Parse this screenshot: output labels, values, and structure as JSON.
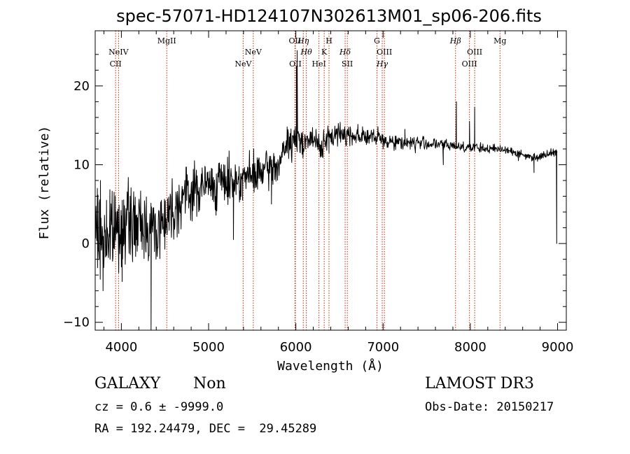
{
  "chart_data": {
    "type": "line",
    "title": "spec-57071-HD124107N302613M01_sp06-206.fits",
    "xlabel": "Wavelength (Å)",
    "ylabel": "Flux (relative)",
    "xlim": [
      3700,
      9100
    ],
    "ylim": [
      -11,
      27
    ],
    "x_ticks": [
      4000,
      5000,
      6000,
      7000,
      8000,
      9000
    ],
    "y_ticks": [
      -10,
      0,
      10,
      20
    ],
    "grid": false,
    "line_color": "#000000",
    "marker_color": "#cc2200",
    "spectrum": {
      "name": "flux",
      "anchors": [
        [
          3700,
          1.0
        ],
        [
          3800,
          0.5
        ],
        [
          3900,
          1.5
        ],
        [
          4000,
          2.0
        ],
        [
          4100,
          2.5
        ],
        [
          4200,
          2.0
        ],
        [
          4300,
          2.5
        ],
        [
          4400,
          1.5
        ],
        [
          4500,
          3.5
        ],
        [
          4600,
          4.5
        ],
        [
          4700,
          6.0
        ],
        [
          4800,
          6.5
        ],
        [
          4900,
          7.0
        ],
        [
          5000,
          7.5
        ],
        [
          5100,
          7.5
        ],
        [
          5200,
          8.0
        ],
        [
          5300,
          8.0
        ],
        [
          5400,
          8.5
        ],
        [
          5500,
          8.5
        ],
        [
          5600,
          9.0
        ],
        [
          5700,
          9.5
        ],
        [
          5800,
          10.0
        ],
        [
          5900,
          12.5
        ],
        [
          6000,
          13.0
        ],
        [
          6100,
          13.2
        ],
        [
          6200,
          13.0
        ],
        [
          6300,
          12.5
        ],
        [
          6400,
          13.5
        ],
        [
          6500,
          14.0
        ],
        [
          6600,
          13.8
        ],
        [
          6700,
          13.8
        ],
        [
          6800,
          13.6
        ],
        [
          6900,
          13.4
        ],
        [
          7000,
          13.2
        ],
        [
          7200,
          12.8
        ],
        [
          7400,
          12.8
        ],
        [
          7600,
          12.6
        ],
        [
          7800,
          12.4
        ],
        [
          8000,
          12.2
        ],
        [
          8200,
          12.0
        ],
        [
          8400,
          12.0
        ],
        [
          8600,
          11.2
        ],
        [
          8700,
          11.0
        ],
        [
          8800,
          11.0
        ],
        [
          8900,
          11.5
        ],
        [
          9000,
          11.8
        ]
      ],
      "features": [
        [
          3725,
          7.0
        ],
        [
          3760,
          8.0
        ],
        [
          3790,
          -6.0
        ],
        [
          3830,
          5.5
        ],
        [
          3870,
          -2.0
        ],
        [
          3930,
          6.0
        ],
        [
          4010,
          5.5
        ],
        [
          4100,
          6.0
        ],
        [
          4200,
          5.0
        ],
        [
          4280,
          -1.0
        ],
        [
          4340,
          -11.0
        ],
        [
          4360,
          4.5
        ],
        [
          5285,
          0.5
        ],
        [
          5390,
          5.5
        ],
        [
          5720,
          5.0
        ],
        [
          5900,
          14.8
        ],
        [
          6007,
          22.5
        ],
        [
          6015,
          24.5
        ],
        [
          6300,
          11.0
        ],
        [
          6380,
          11.5
        ],
        [
          6560,
          14.8
        ],
        [
          6940,
          14.6
        ],
        [
          7000,
          12.0
        ],
        [
          7250,
          14.5
        ],
        [
          7370,
          11.5
        ],
        [
          7690,
          10.0
        ],
        [
          7840,
          18.0
        ],
        [
          7990,
          15.5
        ],
        [
          8050,
          17.3
        ],
        [
          8550,
          10.5
        ],
        [
          8730,
          9.0
        ],
        [
          8950,
          12.0
        ],
        [
          8990,
          0.0
        ]
      ],
      "noise": {
        "seed": 7,
        "blue_end_amplitude": 5.0,
        "red_end_amplitude": 0.5,
        "points": 1200
      }
    },
    "line_markers": [
      {
        "label": "CII",
        "x": 3934,
        "row": 3,
        "italic": false
      },
      {
        "label": "NeIV",
        "x": 3968,
        "row": 2,
        "italic": false
      },
      {
        "label": "MgII",
        "x": 4520,
        "row": 1,
        "italic": false
      },
      {
        "label": "NeV",
        "x": 5396,
        "row": 3,
        "italic": false
      },
      {
        "label": "NeV",
        "x": 5512,
        "row": 2,
        "italic": false
      },
      {
        "label": "OII",
        "x": 5990,
        "row": 1,
        "italic": false
      },
      {
        "label": "OII",
        "x": 5995,
        "row": 3,
        "italic": false
      },
      {
        "label": "Hη",
        "x": 6085,
        "row": 1,
        "italic": true
      },
      {
        "label": "Hθ",
        "x": 6120,
        "row": 2,
        "italic": true
      },
      {
        "label": "HeI",
        "x": 6265,
        "row": 3,
        "italic": false
      },
      {
        "label": "K",
        "x": 6325,
        "row": 2,
        "italic": false
      },
      {
        "label": "H",
        "x": 6380,
        "row": 1,
        "italic": false
      },
      {
        "label": "Hδ",
        "x": 6565,
        "row": 2,
        "italic": true
      },
      {
        "label": "SII",
        "x": 6590,
        "row": 3,
        "italic": false
      },
      {
        "label": "G",
        "x": 6930,
        "row": 1,
        "italic": false
      },
      {
        "label": "OIII",
        "x": 7015,
        "row": 2,
        "italic": false
      },
      {
        "label": "Hγ",
        "x": 6990,
        "row": 3,
        "italic": true
      },
      {
        "label": "Hβ",
        "x": 7830,
        "row": 1,
        "italic": true
      },
      {
        "label": "OIII",
        "x": 8050,
        "row": 2,
        "italic": false
      },
      {
        "label": "OIII",
        "x": 7990,
        "row": 3,
        "italic": false
      },
      {
        "label": "Mg",
        "x": 8340,
        "row": 1,
        "italic": false
      }
    ]
  },
  "info": {
    "class": "GALAXY",
    "subclass": "Non",
    "survey": "LAMOST DR3",
    "cz": "cz = 0.6 ± -9999.0",
    "obs_date": "Obs-Date: 20150217",
    "radec": "RA = 192.24479, DEC =  29.45289"
  }
}
